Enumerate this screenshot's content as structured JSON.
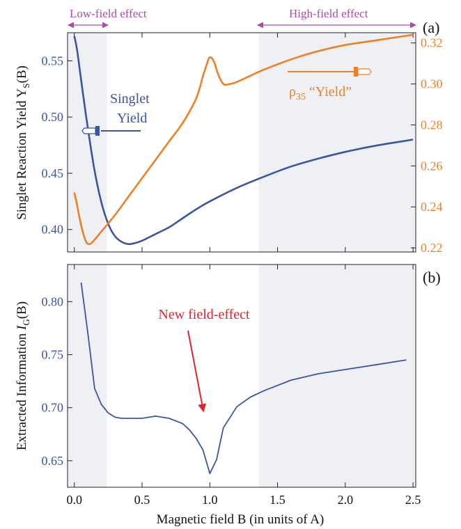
{
  "colors": {
    "blue": "#3B54A3",
    "orange": "#F07F22",
    "magenta": "#B048A8",
    "red": "#E8202A",
    "shade": "#EEF0F3",
    "axis": "#222222"
  },
  "header": {
    "low_field_label": "Low-field effect",
    "high_field_label": "High-field effect"
  },
  "xaxis": {
    "label": "Magnetic field B (in units of A)",
    "ticks": [
      "0.0",
      "0.5",
      "1.0",
      "1.5",
      "2.0",
      "2.5"
    ]
  },
  "chart_data": [
    {
      "id": "a",
      "type": "line",
      "panel_label": "(a)",
      "ylabel_main": "Singlet Reaction Yield Y",
      "ylabel_sub": "S",
      "ylabel_tail": "(B)",
      "xlim": [
        -0.05,
        2.52
      ],
      "ylim": [
        0.38,
        0.575
      ],
      "ylim_right": [
        0.218,
        0.325
      ],
      "yticks_left": [
        "0.40",
        "0.45",
        "0.50",
        "0.55"
      ],
      "yticks_right": [
        "0.22",
        "0.24",
        "0.26",
        "0.28",
        "0.30",
        "0.32"
      ],
      "shaded_x_ranges": [
        [
          -0.05,
          0.24
        ],
        [
          1.36,
          2.52
        ]
      ],
      "grid": false,
      "annotations": {
        "singlet_line1": "Singlet",
        "singlet_line2": "Yield",
        "rho_main": "ρ",
        "rho_sub": "35",
        "rho_tail": " “Yield”"
      },
      "series": [
        {
          "name": "Singlet Yield",
          "axis": "left",
          "color": "#3B54A3",
          "x": [
            0.0,
            0.02,
            0.05,
            0.1,
            0.15,
            0.2,
            0.25,
            0.3,
            0.35,
            0.4,
            0.45,
            0.5,
            0.6,
            0.7,
            0.8,
            0.9,
            1.0,
            1.2,
            1.4,
            1.6,
            1.8,
            2.0,
            2.2,
            2.4,
            2.5
          ],
          "y": [
            0.572,
            0.56,
            0.533,
            0.49,
            0.452,
            0.424,
            0.405,
            0.394,
            0.389,
            0.387,
            0.388,
            0.39,
            0.396,
            0.402,
            0.41,
            0.418,
            0.425,
            0.437,
            0.447,
            0.456,
            0.463,
            0.469,
            0.474,
            0.478,
            0.48
          ]
        },
        {
          "name": "ρ35 “Yield”",
          "axis": "right",
          "color": "#F07F22",
          "x": [
            0.0,
            0.02,
            0.05,
            0.08,
            0.1,
            0.12,
            0.15,
            0.2,
            0.3,
            0.4,
            0.5,
            0.6,
            0.7,
            0.8,
            0.9,
            0.95,
            0.98,
            1.0,
            1.03,
            1.06,
            1.1,
            1.15,
            1.2,
            1.3,
            1.4,
            1.6,
            1.8,
            2.0,
            2.2,
            2.4,
            2.5
          ],
          "y": [
            0.247,
            0.241,
            0.231,
            0.224,
            0.222,
            0.222,
            0.224,
            0.228,
            0.236,
            0.245,
            0.254,
            0.263,
            0.272,
            0.281,
            0.293,
            0.304,
            0.31,
            0.313,
            0.311,
            0.305,
            0.3,
            0.3,
            0.301,
            0.304,
            0.307,
            0.312,
            0.316,
            0.319,
            0.321,
            0.323,
            0.324
          ]
        }
      ]
    },
    {
      "id": "b",
      "type": "line",
      "panel_label": "(b)",
      "ylabel_main": "Extracted Information  ",
      "ylabel_italic": "I",
      "ylabel_sub": "G",
      "ylabel_tail": "(B)",
      "xlim": [
        -0.05,
        2.52
      ],
      "ylim": [
        0.625,
        0.835
      ],
      "yticks_left": [
        "0.65",
        "0.70",
        "0.75",
        "0.80"
      ],
      "shaded_x_ranges": [
        [
          -0.05,
          0.24
        ],
        [
          1.36,
          2.52
        ]
      ],
      "grid": false,
      "annotation": "New field-effect",
      "series": [
        {
          "name": "Extracted Information",
          "axis": "left",
          "color": "#3B54A3",
          "x": [
            0.05,
            0.1,
            0.15,
            0.2,
            0.25,
            0.3,
            0.35,
            0.4,
            0.5,
            0.6,
            0.7,
            0.8,
            0.85,
            0.9,
            0.95,
            1.0,
            1.05,
            1.1,
            1.2,
            1.3,
            1.4,
            1.6,
            1.8,
            2.0,
            2.2,
            2.45
          ],
          "y": [
            0.818,
            0.77,
            0.718,
            0.703,
            0.695,
            0.691,
            0.69,
            0.69,
            0.69,
            0.692,
            0.69,
            0.685,
            0.679,
            0.671,
            0.66,
            0.638,
            0.651,
            0.681,
            0.701,
            0.71,
            0.716,
            0.726,
            0.732,
            0.736,
            0.74,
            0.745
          ]
        }
      ]
    }
  ]
}
